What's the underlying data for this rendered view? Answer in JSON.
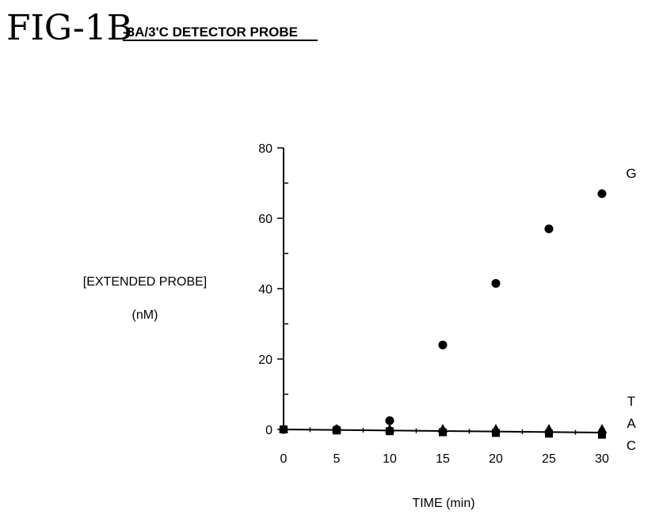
{
  "figure": {
    "label": "FIG-1B",
    "subtitle": "-3A/3'C DETECTOR PROBE"
  },
  "chart_data": {
    "type": "scatter",
    "title": "-3A/3'C DETECTOR PROBE",
    "xlabel": "TIME (min)",
    "ylabel": "[EXTENDED PROBE]",
    "ylabel_unit": "(nM)",
    "x": [
      0,
      5,
      10,
      15,
      20,
      25,
      30
    ],
    "xlim": [
      0,
      30
    ],
    "ylim": [
      0,
      80
    ],
    "x_ticks": [
      "0",
      "5",
      "10",
      "15",
      "20",
      "25",
      "30"
    ],
    "y_ticks": [
      "0",
      "20",
      "40",
      "60",
      "80"
    ],
    "grid": false,
    "series": [
      {
        "name": "G",
        "marker": "circle",
        "values": [
          0,
          0,
          2.5,
          24,
          41.5,
          57,
          67
        ]
      },
      {
        "name": "T",
        "marker": "triangle",
        "values": [
          0,
          0,
          0,
          0,
          0,
          0,
          0
        ]
      },
      {
        "name": "A",
        "marker": "diamond",
        "values": [
          0,
          0,
          -0.3,
          -0.5,
          -0.7,
          -0.9,
          -1
        ]
      },
      {
        "name": "C",
        "marker": "square",
        "values": [
          0,
          -0.3,
          -0.5,
          -0.8,
          -1,
          -1.2,
          -1.5
        ]
      }
    ]
  }
}
